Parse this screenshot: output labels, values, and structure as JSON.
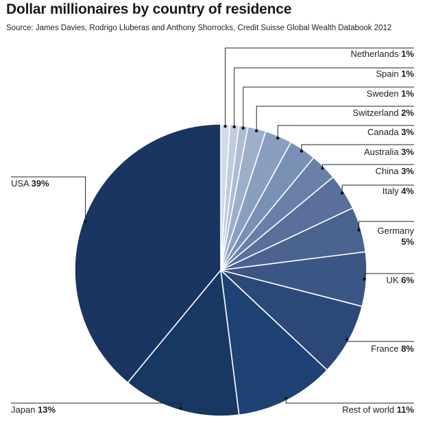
{
  "header": {
    "title": "Dollar millionaires by country of residence",
    "source": "Source: James Davies, Rodrigo Lluberas and Anthony Shorrocks, Credit Suisse Global Wealth Databook 2012"
  },
  "chart_data": {
    "type": "pie",
    "title": "Dollar millionaires by country of residence",
    "unit": "%",
    "slices": [
      {
        "name": "Netherlands",
        "value": 1,
        "label": "1%",
        "color": "#d3dbe8"
      },
      {
        "name": "Spain",
        "value": 1,
        "label": "1%",
        "color": "#c0cbdd"
      },
      {
        "name": "Sweden",
        "value": 1,
        "label": "1%",
        "color": "#aebcd3"
      },
      {
        "name": "Switzerland",
        "value": 2,
        "label": "2%",
        "color": "#9caec9"
      },
      {
        "name": "Canada",
        "value": 3,
        "label": "3%",
        "color": "#8a9fbf"
      },
      {
        "name": "Australia",
        "value": 3,
        "label": "3%",
        "color": "#7890b4"
      },
      {
        "name": "China",
        "value": 3,
        "label": "3%",
        "color": "#6880a8"
      },
      {
        "name": "Italy",
        "value": 4,
        "label": "4%",
        "color": "#58709b"
      },
      {
        "name": "Germany",
        "value": 5,
        "label": "5%",
        "color": "#4a638f"
      },
      {
        "name": "UK",
        "value": 6,
        "label": "6%",
        "color": "#3b5584"
      },
      {
        "name": "France",
        "value": 8,
        "label": "8%",
        "color": "#2b4876"
      },
      {
        "name": "Rest of world",
        "value": 11,
        "label": "11%",
        "color": "#1d4273"
      },
      {
        "name": "Japan",
        "value": 13,
        "label": "13%",
        "color": "#183864"
      },
      {
        "name": "USA",
        "value": 39,
        "label": "39%",
        "color": "#1b3562"
      }
    ],
    "label_side": {
      "Netherlands": "right",
      "Spain": "right",
      "Sweden": "right",
      "Switzerland": "right",
      "Canada": "right",
      "Australia": "right",
      "China": "right",
      "Italy": "right",
      "Germany": "right",
      "UK": "right",
      "France": "right",
      "Rest of world": "right",
      "Japan": "left",
      "USA": "left"
    }
  }
}
